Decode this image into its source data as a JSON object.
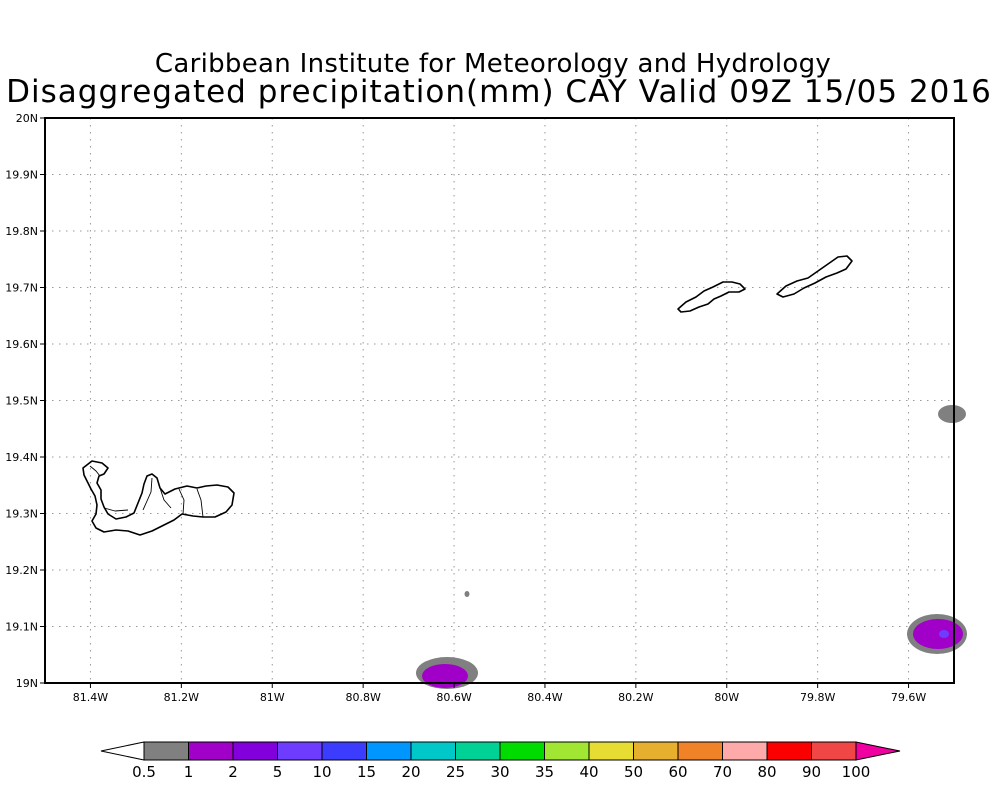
{
  "header": {
    "institute": "Caribbean Institute for Meteorology and Hydrology",
    "product": "Disaggregated precipitation(mm) CAY Valid 09Z 15/05 2016"
  },
  "map": {
    "lon_range": [
      -81.5,
      -79.5
    ],
    "lat_range": [
      19.0,
      20.0
    ],
    "gridlines": "dotted",
    "lat_ticks": [
      "19N",
      "19.1N",
      "19.2N",
      "19.3N",
      "19.4N",
      "19.5N",
      "19.6N",
      "19.7N",
      "19.8N",
      "19.9N",
      "20N"
    ],
    "lon_ticks": [
      "81.4W",
      "81.2W",
      "81W",
      "80.8W",
      "80.6W",
      "80.4W",
      "80.2W",
      "80W",
      "79.8W",
      "79.6W"
    ],
    "lat_values": [
      19.0,
      19.1,
      19.2,
      19.3,
      19.4,
      19.5,
      19.6,
      19.7,
      19.8,
      19.9,
      20.0
    ],
    "lon_values": [
      -81.4,
      -81.2,
      -81.0,
      -80.8,
      -80.6,
      -80.4,
      -80.2,
      -80.0,
      -79.8,
      -79.6
    ],
    "islands": [
      "grand-cayman",
      "little-cayman",
      "cayman-brac"
    ]
  },
  "colorbar": {
    "labels": [
      "0.5",
      "1",
      "2",
      "5",
      "10",
      "15",
      "20",
      "25",
      "30",
      "35",
      "40",
      "50",
      "60",
      "70",
      "80",
      "90",
      "100"
    ],
    "colors": [
      "#808080",
      "#a000c8",
      "#8200dc",
      "#6e3cff",
      "#3c3cff",
      "#0096ff",
      "#00c8c8",
      "#00d296",
      "#00dc00",
      "#a0e632",
      "#e6dc32",
      "#e6af2d",
      "#f08228",
      "#ffaaaa",
      "#fa0000",
      "#f04646",
      "#f000a0"
    ],
    "under_color": "#ffffff",
    "over_color": "#f000a0"
  }
}
